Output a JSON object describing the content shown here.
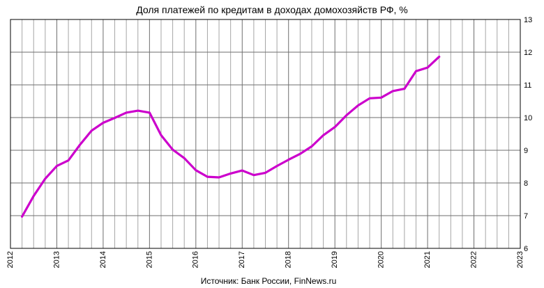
{
  "chart_data": {
    "type": "line",
    "title": "Доля платежей по кредитам в доходах домохозяйств РФ, %",
    "source": "Источник: Банк России, FinNews.ru",
    "xlabel": "",
    "ylabel": "",
    "x_ticks": [
      "2012",
      "2013",
      "2014",
      "2015",
      "2016",
      "2017",
      "2018",
      "2019",
      "2020",
      "2021",
      "2022",
      "2023"
    ],
    "y_ticks": [
      "6",
      "7",
      "8",
      "9",
      "10",
      "11",
      "12",
      "13"
    ],
    "xlim": [
      2012,
      2023
    ],
    "ylim": [
      6,
      13
    ],
    "y_axis_position": "right",
    "grid": true,
    "minor_x_grid_per_year": 4,
    "series": [
      {
        "color": "#cc00cc",
        "points": [
          [
            2012.25,
            6.97
          ],
          [
            2012.5,
            7.6
          ],
          [
            2012.75,
            8.13
          ],
          [
            2013.0,
            8.52
          ],
          [
            2013.25,
            8.69
          ],
          [
            2013.5,
            9.17
          ],
          [
            2013.75,
            9.6
          ],
          [
            2014.0,
            9.84
          ],
          [
            2014.25,
            9.99
          ],
          [
            2014.5,
            10.15
          ],
          [
            2014.75,
            10.21
          ],
          [
            2015.0,
            10.15
          ],
          [
            2015.25,
            9.46
          ],
          [
            2015.5,
            9.02
          ],
          [
            2015.75,
            8.76
          ],
          [
            2016.0,
            8.39
          ],
          [
            2016.25,
            8.19
          ],
          [
            2016.5,
            8.17
          ],
          [
            2016.75,
            8.29
          ],
          [
            2017.0,
            8.38
          ],
          [
            2017.25,
            8.24
          ],
          [
            2017.5,
            8.31
          ],
          [
            2017.75,
            8.52
          ],
          [
            2018.0,
            8.71
          ],
          [
            2018.25,
            8.89
          ],
          [
            2018.5,
            9.12
          ],
          [
            2018.75,
            9.46
          ],
          [
            2019.0,
            9.71
          ],
          [
            2019.25,
            10.07
          ],
          [
            2019.5,
            10.37
          ],
          [
            2019.75,
            10.59
          ],
          [
            2020.0,
            10.61
          ],
          [
            2020.25,
            10.81
          ],
          [
            2020.5,
            10.88
          ],
          [
            2020.75,
            11.42
          ],
          [
            2021.0,
            11.53
          ],
          [
            2021.25,
            11.86
          ]
        ]
      }
    ]
  }
}
